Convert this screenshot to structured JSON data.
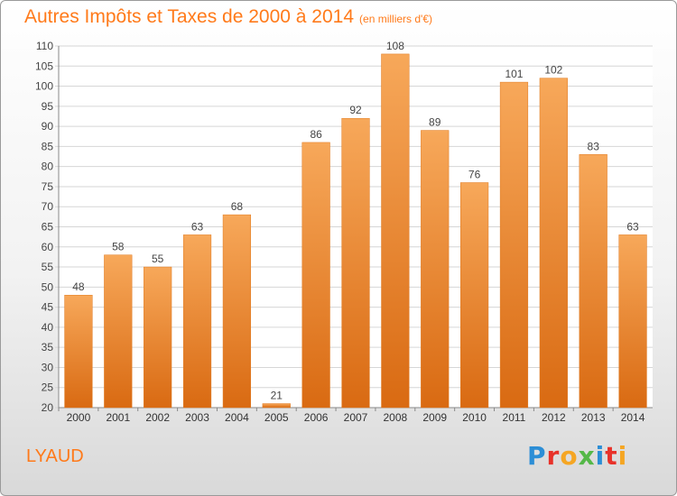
{
  "title": "Autres Impôts et Taxes de 2000 à 2014",
  "unit": "(en milliers d'€)",
  "place": "LYAUD",
  "logo": {
    "letters": [
      "P",
      "r",
      "o",
      "x",
      "i",
      "t",
      "i"
    ],
    "colors": [
      "#2c8ed6",
      "#e8322a",
      "#f5a623",
      "#55b848",
      "#2c8ed6",
      "#e8322a",
      "#f5a623"
    ]
  },
  "chart_data": {
    "type": "bar",
    "categories": [
      "2000",
      "2001",
      "2002",
      "2003",
      "2004",
      "2005",
      "2006",
      "2007",
      "2008",
      "2009",
      "2010",
      "2011",
      "2012",
      "2013",
      "2014"
    ],
    "values": [
      48,
      58,
      55,
      63,
      68,
      21,
      86,
      92,
      108,
      89,
      76,
      101,
      102,
      83,
      63
    ],
    "ylim": [
      20,
      110
    ],
    "yticks": [
      20,
      25,
      30,
      35,
      40,
      45,
      50,
      55,
      60,
      65,
      70,
      75,
      80,
      85,
      90,
      95,
      100,
      105,
      110
    ],
    "grid": true,
    "bar_color": "#f08b2d"
  }
}
